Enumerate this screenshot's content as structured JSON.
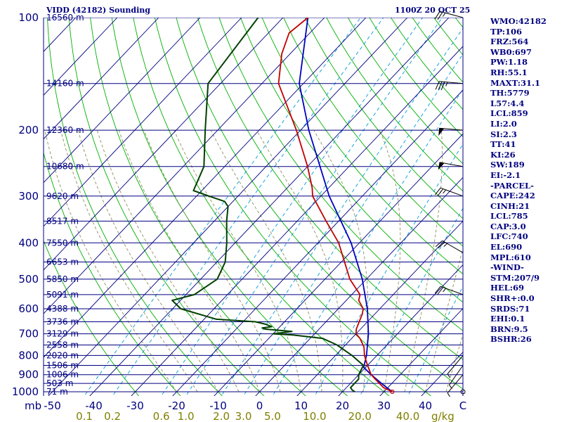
{
  "chart_data": {
    "type": "line",
    "title": "VIDD (42182) Sounding",
    "time_label": "1100Z 20 OCT 25",
    "pressure_axis_unit": "mb",
    "pressure_ticks": [
      100,
      200,
      300,
      400,
      500,
      600,
      700,
      800,
      900,
      1000
    ],
    "temperature_ticks": [
      "-50",
      "-40",
      "-30",
      "-20",
      "-10",
      "0",
      "10",
      "20",
      "30",
      "40",
      "C"
    ],
    "mixing_ratio_ticks": [
      "0.1",
      "0.2",
      "0.6",
      "1.0",
      "2.0",
      "3.0",
      "5.0",
      "10.0",
      "20.0",
      "40.0"
    ],
    "mixing_ratio_unit": "g/kg",
    "height_labels": [
      {
        "p": 100,
        "label": "16560 m"
      },
      {
        "p": 150,
        "label": "14160 m"
      },
      {
        "p": 200,
        "label": "12360 m"
      },
      {
        "p": 250,
        "label": "10680 m"
      },
      {
        "p": 300,
        "label": "9620 m"
      },
      {
        "p": 350,
        "label": "8517 m"
      },
      {
        "p": 400,
        "label": "7550 m"
      },
      {
        "p": 450,
        "label": "6653 m"
      },
      {
        "p": 500,
        "label": "5850 m"
      },
      {
        "p": 550,
        "label": "5091 m"
      },
      {
        "p": 600,
        "label": "4388 m"
      },
      {
        "p": 650,
        "label": "3736 m"
      },
      {
        "p": 700,
        "label": "3129 m"
      },
      {
        "p": 750,
        "label": "2558 m"
      },
      {
        "p": 800,
        "label": "2020 m"
      },
      {
        "p": 850,
        "label": "1506 m"
      },
      {
        "p": 900,
        "label": "1006 m"
      },
      {
        "p": 950,
        "label": "503 m"
      },
      {
        "p": 1000,
        "label": "71 m"
      }
    ],
    "temperature_profile": [
      {
        "p": 1000,
        "t": 32
      },
      {
        "p": 975,
        "t": 29
      },
      {
        "p": 950,
        "t": 27
      },
      {
        "p": 925,
        "t": 25
      },
      {
        "p": 900,
        "t": 23
      },
      {
        "p": 850,
        "t": 20
      },
      {
        "p": 800,
        "t": 17
      },
      {
        "p": 760,
        "t": 15
      },
      {
        "p": 720,
        "t": 12
      },
      {
        "p": 700,
        "t": 10
      },
      {
        "p": 680,
        "t": 9
      },
      {
        "p": 650,
        "t": 8
      },
      {
        "p": 620,
        "t": 7
      },
      {
        "p": 600,
        "t": 6
      },
      {
        "p": 570,
        "t": 3
      },
      {
        "p": 550,
        "t": 2
      },
      {
        "p": 500,
        "t": -4
      },
      {
        "p": 400,
        "t": -15
      },
      {
        "p": 350,
        "t": -23
      },
      {
        "p": 300,
        "t": -32
      },
      {
        "p": 285,
        "t": -34
      },
      {
        "p": 250,
        "t": -40
      },
      {
        "p": 200,
        "t": -51
      },
      {
        "p": 150,
        "t": -66
      },
      {
        "p": 125,
        "t": -72
      },
      {
        "p": 110,
        "t": -75
      },
      {
        "p": 100,
        "t": -74
      }
    ],
    "dewpoint_profile": [
      {
        "p": 1000,
        "t": 23
      },
      {
        "p": 990,
        "t": 22
      },
      {
        "p": 975,
        "t": 21
      },
      {
        "p": 950,
        "t": 21
      },
      {
        "p": 925,
        "t": 21
      },
      {
        "p": 900,
        "t": 20
      },
      {
        "p": 850,
        "t": 19
      },
      {
        "p": 800,
        "t": 14
      },
      {
        "p": 750,
        "t": 8
      },
      {
        "p": 720,
        "t": 3
      },
      {
        "p": 705,
        "t": -5
      },
      {
        "p": 700,
        "t": -10
      },
      {
        "p": 690,
        "t": -6
      },
      {
        "p": 680,
        "t": -13
      },
      {
        "p": 675,
        "t": -14
      },
      {
        "p": 670,
        "t": -12
      },
      {
        "p": 660,
        "t": -14
      },
      {
        "p": 650,
        "t": -17
      },
      {
        "p": 640,
        "t": -27
      },
      {
        "p": 600,
        "t": -38
      },
      {
        "p": 570,
        "t": -42
      },
      {
        "p": 550,
        "t": -38
      },
      {
        "p": 500,
        "t": -36
      },
      {
        "p": 450,
        "t": -38
      },
      {
        "p": 400,
        "t": -42
      },
      {
        "p": 350,
        "t": -47
      },
      {
        "p": 320,
        "t": -50
      },
      {
        "p": 310,
        "t": -52
      },
      {
        "p": 300,
        "t": -57
      },
      {
        "p": 290,
        "t": -62
      },
      {
        "p": 250,
        "t": -65
      },
      {
        "p": 200,
        "t": -73
      },
      {
        "p": 150,
        "t": -83
      },
      {
        "p": 100,
        "t": -86
      }
    ],
    "parcel_path": [
      {
        "p": 1000,
        "t": 32
      },
      {
        "p": 950,
        "t": 27.5
      },
      {
        "p": 900,
        "t": 23
      },
      {
        "p": 860,
        "t": 19.5
      },
      {
        "p": 800,
        "t": 17.5
      },
      {
        "p": 700,
        "t": 13
      },
      {
        "p": 600,
        "t": 7
      },
      {
        "p": 500,
        "t": -1
      },
      {
        "p": 400,
        "t": -12
      },
      {
        "p": 300,
        "t": -28
      },
      {
        "p": 200,
        "t": -48
      },
      {
        "p": 150,
        "t": -61
      },
      {
        "p": 100,
        "t": -74
      }
    ],
    "wind_barbs": [
      {
        "p": 1000,
        "dir": 270,
        "spd": 0
      },
      {
        "p": 900,
        "dir": 220,
        "spd": 5
      },
      {
        "p": 850,
        "dir": 215,
        "spd": 5
      },
      {
        "p": 800,
        "dir": 220,
        "spd": 5
      },
      {
        "p": 550,
        "dir": 290,
        "spd": 25
      },
      {
        "p": 425,
        "dir": 300,
        "spd": 25
      },
      {
        "p": 300,
        "dir": 290,
        "spd": 25
      },
      {
        "p": 250,
        "dir": 280,
        "spd": 50
      },
      {
        "p": 200,
        "dir": 275,
        "spd": 50
      },
      {
        "p": 150,
        "dir": 275,
        "spd": 35
      },
      {
        "p": 100,
        "dir": 285,
        "spd": 25
      }
    ],
    "dry_adiabats_theta_c": [
      -30,
      -20,
      -10,
      0,
      10,
      20,
      30,
      40,
      50,
      60,
      70,
      80,
      90,
      100,
      110,
      120,
      130,
      140,
      150,
      160,
      170,
      180,
      190,
      200,
      210
    ],
    "moist_adiabats_c": [
      -20,
      -15,
      -10,
      -5,
      0,
      5,
      10,
      15,
      20,
      25,
      30,
      35,
      40,
      45
    ],
    "mixing_ratio_lines_gkg": [
      0.1,
      0.2,
      0.6,
      1.0,
      2.0,
      3.0,
      5.0,
      10.0,
      20.0,
      40.0
    ]
  },
  "indices": [
    "WMO:42182",
    "TP:106",
    "FRZ:564",
    "WB0:697",
    "PW:1.18",
    "RH:55.1",
    "MAXT:31.1",
    "TH:5779",
    "L57:4.4",
    "LCL:859",
    "LI:2.0",
    "SI:2.3",
    "TT:41",
    "KI:26",
    "SW:189",
    "EI:-2.1",
    "-PARCEL-",
    "CAPE:242",
    "CINH:21",
    "LCL:785",
    "CAP:3.0",
    "LFC:740",
    "EL:690",
    "MPL:610",
    "-WIND-",
    "STM:207/9",
    "HEL:69",
    "SHR+:0.0",
    "SRDS:71",
    "EHI:0.1",
    "BRN:9.5",
    "BSHR:26"
  ],
  "colors": {
    "isobar": "#000080",
    "isotherm": "#000080",
    "dry_adiabat": "#00b000",
    "moist_adiabat": "#8f8f5f",
    "mixing_ratio": "#009cd8",
    "temperature": "#c00000",
    "dewpoint": "#004000",
    "parcel": "#0000c0",
    "mixing_ratio_label": "#808000",
    "wind_barb": "#000000"
  }
}
